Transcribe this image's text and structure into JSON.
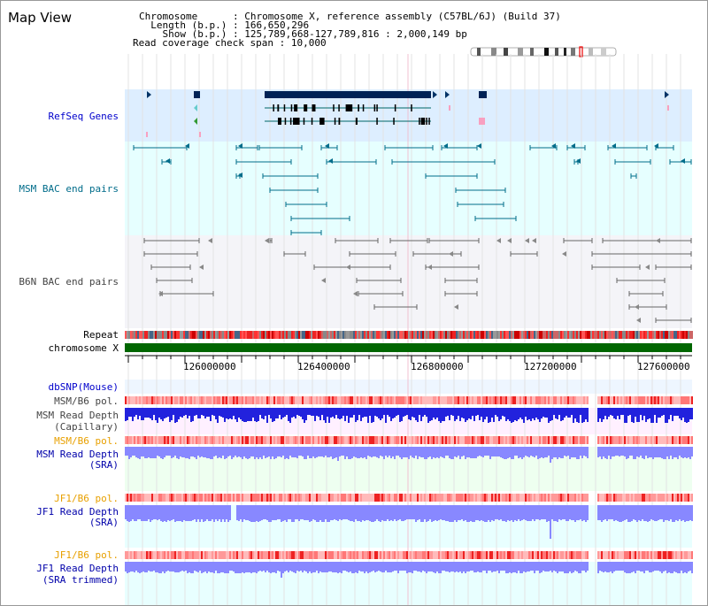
{
  "view_title": "Map View",
  "info": {
    "chromosome_label": "Chromosome",
    "chromosome_value": "Chromosome X, reference assembly (C57BL/6J) (Build 37)",
    "length_label": "Length (b.p.)",
    "length_value": "166,650,296",
    "show_label": "Show (b.p.)",
    "show_value": "125,789,668-127,789,816 : 2,000,149 bp",
    "coverage_label": "Read coverage check span",
    "coverage_value": "10,000"
  },
  "tracks": {
    "refseq": "RefSeq Genes",
    "msm_bac": "MSM BAC end pairs",
    "b6n_bac": "B6N BAC end pairs",
    "repeat": "Repeat",
    "chromosome": "chromosome X",
    "dbsnp": "dbSNP(Mouse)",
    "msm_b6_pol_1": "MSM/B6 pol.",
    "msm_depth_cap_1": "MSM Read Depth",
    "msm_depth_cap_2": "(Capillary)",
    "msm_b6_pol_2": "MSM/B6 pol.",
    "msm_depth_sra_1": "MSM Read Depth",
    "msm_depth_sra_2": "(SRA)",
    "jf1_b6_pol_1": "JF1/B6 pol.",
    "jf1_depth_sra_1": "JF1 Read Depth",
    "jf1_depth_sra_2": "(SRA)",
    "jf1_b6_pol_2": "JF1/B6 pol.",
    "jf1_depth_trim_1": "JF1 Read Depth",
    "jf1_depth_trim_2": "(SRA trimmed)"
  },
  "ruler": {
    "ticks": [
      "126000000",
      "126400000",
      "126800000",
      "127200000",
      "127600000"
    ]
  },
  "colors": {
    "refseq_bg": "#ddeeff",
    "msm_bg": "#e6ffff",
    "b6n_bg": "#f3f3f8",
    "gene_dark": "#002255",
    "msm_bac": "#006c8a",
    "b6n_bac": "#666666",
    "chromosome": "#006600",
    "depth_blue": "#2222dd",
    "depth_light": "#8888ff",
    "pol_red": "#ff8888"
  }
}
